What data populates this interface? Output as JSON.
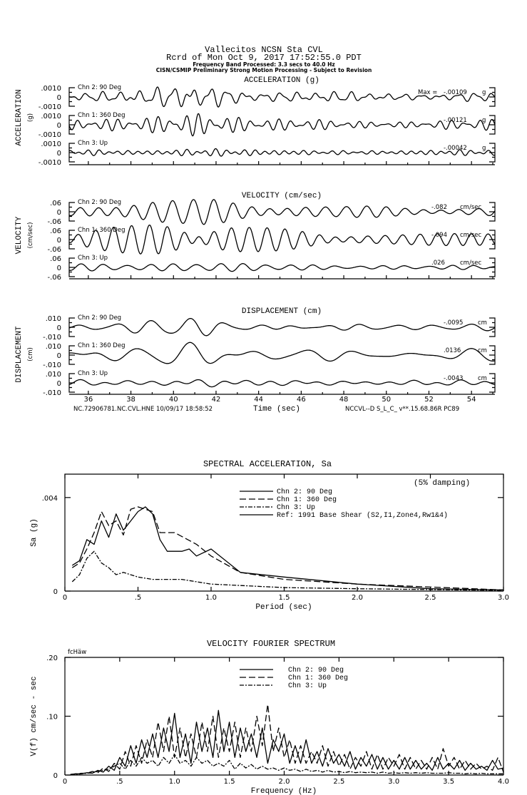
{
  "header": {
    "station": "Vallecitos    NCSN Sta CVL",
    "record": "Rcrd of Mon Oct  9, 2017 17:52:55.0 PDT",
    "band": "Frequency Band Processed: 3.3 secs to 40.0 Hz",
    "note": "CISN/CSMIP Preliminary Strong Motion Processing - Subject to Revision"
  },
  "time_panels": [
    {
      "title": "ACCELERATION (g)",
      "ylabel": "ACCELERATION",
      "yunit": "(g)",
      "tick_top": ".0010",
      "tick_mid": "0",
      "tick_bottom": "-.0010",
      "scale": 0.001,
      "max_prefix": "Max =",
      "channels": [
        {
          "label": "Chn 2: 90 Deg",
          "max": "-.00109",
          "unit": "g"
        },
        {
          "label": "Chn 1: 360 Deg",
          "max": "-.00121",
          "unit": "g"
        },
        {
          "label": "Chn 3: Up",
          "max": "-.00042",
          "unit": "g"
        }
      ]
    },
    {
      "title": "VELOCITY (cm/sec)",
      "ylabel": "VELOCITY",
      "yunit": "(cm/sec)",
      "tick_top": ".06",
      "tick_mid": "0",
      "tick_bottom": "-.06",
      "scale": 0.06,
      "channels": [
        {
          "label": "Chn 2: 90 Deg",
          "max": "-.082",
          "unit": "cm/sec"
        },
        {
          "label": "Chn 1: 360 Deg",
          "max": "-.094",
          "unit": "cm/sec"
        },
        {
          "label": "Chn 3: Up",
          "max": ".026",
          "unit": "cm/sec"
        }
      ]
    },
    {
      "title": "DISPLACEMENT (cm)",
      "ylabel": "DISPLACEMENT",
      "yunit": "(cm)",
      "tick_top": ".010",
      "tick_mid": "0",
      "tick_bottom": "-.010",
      "scale": 0.01,
      "channels": [
        {
          "label": "Chn 2: 90 Deg",
          "max": "-.0095",
          "unit": "cm"
        },
        {
          "label": "Chn 1: 360 Deg",
          "max": ".0136",
          "unit": "cm"
        },
        {
          "label": "Chn 3: Up",
          "max": "-.0043",
          "unit": "cm"
        }
      ]
    }
  ],
  "time_axis": {
    "label": "Time (sec)",
    "xlim": [
      35.1,
      55.1
    ],
    "ticks": [
      "36",
      "38",
      "40",
      "42",
      "44",
      "46",
      "48",
      "50",
      "52",
      "54"
    ]
  },
  "footer": {
    "left": "NC.72906781.NC.CVL.HNE 10/09/17 18:58:52",
    "right": "NCCVL--D  S_L_C_  v**.15.68.86R PC89"
  },
  "chart_data": [
    {
      "type": "line",
      "title": "SPECTRAL ACCELERATION, Sa",
      "annotation": "(5% damping)",
      "xlabel": "Period (sec)",
      "ylabel": "Sa (g)",
      "xlim": [
        0,
        3.0
      ],
      "ylim": [
        0,
        0.005
      ],
      "xticks": [
        "0",
        ".5",
        "1.0",
        "1.5",
        "2.0",
        "2.5",
        "3.0"
      ],
      "yticks": [
        ".004",
        "0"
      ],
      "legend_position": "top-center",
      "legend": [
        "Chn 2: 90 Deg",
        "Chn 1: 360 Deg",
        "Chn 3: Up",
        "Ref: 1991 Base Shear (S2,I1,Zone4,Rw1&4)"
      ],
      "series": [
        {
          "name": "Chn 2: 90 Deg",
          "style": "solid",
          "x": [
            0.05,
            0.1,
            0.15,
            0.2,
            0.25,
            0.3,
            0.35,
            0.4,
            0.45,
            0.5,
            0.55,
            0.6,
            0.65,
            0.7,
            0.8,
            0.85,
            0.9,
            1.0,
            1.1,
            1.2,
            1.5,
            2.0,
            2.5,
            3.0
          ],
          "y": [
            0.0011,
            0.0013,
            0.0022,
            0.002,
            0.003,
            0.0023,
            0.0033,
            0.0026,
            0.003,
            0.0034,
            0.0036,
            0.0033,
            0.0022,
            0.0017,
            0.0017,
            0.0018,
            0.0015,
            0.0018,
            0.0013,
            0.0008,
            0.0006,
            0.0003,
            0.0001,
            5e-05
          ]
        },
        {
          "name": "Chn 1: 360 Deg",
          "style": "dashed",
          "x": [
            0.05,
            0.1,
            0.15,
            0.2,
            0.25,
            0.3,
            0.35,
            0.4,
            0.45,
            0.5,
            0.55,
            0.6,
            0.65,
            0.75,
            0.9,
            1.0,
            1.2,
            1.5,
            2.0,
            3.0
          ],
          "y": [
            0.001,
            0.0012,
            0.0018,
            0.0025,
            0.0034,
            0.0028,
            0.003,
            0.0024,
            0.0035,
            0.0036,
            0.0035,
            0.0034,
            0.0025,
            0.0025,
            0.002,
            0.0015,
            0.0008,
            0.0005,
            0.0003,
            5e-05
          ]
        },
        {
          "name": "Chn 3: Up",
          "style": "dashdot",
          "x": [
            0.05,
            0.1,
            0.15,
            0.2,
            0.25,
            0.3,
            0.35,
            0.4,
            0.5,
            0.6,
            0.8,
            0.9,
            1.0,
            1.5,
            2.0,
            3.0
          ],
          "y": [
            0.0004,
            0.0007,
            0.0014,
            0.0017,
            0.0012,
            0.001,
            0.0007,
            0.0008,
            0.0006,
            0.0005,
            0.0005,
            0.0004,
            0.0003,
            0.00015,
            0.0001,
            3e-05
          ]
        }
      ]
    },
    {
      "type": "line",
      "title": "VELOCITY FOURIER SPECTRUM",
      "annotation": "fcHäw",
      "xlabel": "Frequency (Hz)",
      "ylabel": "V(f)   cm/sec - sec",
      "xlim": [
        0,
        4.0
      ],
      "ylim": [
        0,
        0.2
      ],
      "xticks": [
        "0",
        ".5",
        "1.0",
        "1.5",
        "2.0",
        "2.5",
        "3.0",
        "3.5",
        "4.0"
      ],
      "yticks": [
        ".20",
        ".10",
        "0"
      ],
      "legend_position": "top-center",
      "legend": [
        "Chn 2: 90 Deg",
        "Chn 1: 360 Deg",
        "Chn 3: Up"
      ],
      "x_start": 0.05,
      "x_step": 0.05,
      "series": [
        {
          "name": "Chn 2: 90 Deg",
          "style": "solid",
          "y": [
            0.001,
            0.002,
            0.002,
            0.004,
            0.003,
            0.008,
            0.005,
            0.015,
            0.008,
            0.03,
            0.015,
            0.05,
            0.02,
            0.06,
            0.03,
            0.07,
            0.03,
            0.08,
            0.04,
            0.105,
            0.03,
            0.07,
            0.02,
            0.09,
            0.04,
            0.08,
            0.03,
            0.11,
            0.04,
            0.09,
            0.03,
            0.08,
            0.04,
            0.07,
            0.03,
            0.08,
            0.02,
            0.06,
            0.04,
            0.07,
            0.02,
            0.05,
            0.02,
            0.06,
            0.02,
            0.04,
            0.015,
            0.045,
            0.02,
            0.035,
            0.015,
            0.04,
            0.01,
            0.03,
            0.015,
            0.035,
            0.01,
            0.03,
            0.01,
            0.025,
            0.01,
            0.03,
            0.01,
            0.025,
            0.01,
            0.02,
            0.008,
            0.03,
            0.01,
            0.02,
            0.01,
            0.025,
            0.008,
            0.02,
            0.01,
            0.015,
            0.008,
            0.025,
            0.01,
            0.012
          ]
        },
        {
          "name": "Chn 1: 360 Deg",
          "style": "dashed",
          "y": [
            0.001,
            0.002,
            0.003,
            0.003,
            0.006,
            0.004,
            0.012,
            0.006,
            0.02,
            0.01,
            0.04,
            0.015,
            0.05,
            0.02,
            0.06,
            0.03,
            0.09,
            0.04,
            0.1,
            0.03,
            0.08,
            0.03,
            0.07,
            0.03,
            0.09,
            0.04,
            0.1,
            0.03,
            0.08,
            0.04,
            0.09,
            0.03,
            0.08,
            0.04,
            0.1,
            0.05,
            0.12,
            0.04,
            0.08,
            0.03,
            0.06,
            0.02,
            0.05,
            0.02,
            0.04,
            0.02,
            0.05,
            0.015,
            0.04,
            0.015,
            0.035,
            0.01,
            0.03,
            0.015,
            0.04,
            0.01,
            0.035,
            0.01,
            0.03,
            0.015,
            0.035,
            0.01,
            0.03,
            0.01,
            0.025,
            0.01,
            0.03,
            0.01,
            0.045,
            0.015,
            0.03,
            0.01,
            0.025,
            0.01,
            0.02,
            0.01,
            0.015,
            0.008,
            0.03,
            0.005
          ]
        },
        {
          "name": "Chn 3: Up",
          "style": "dashdot",
          "y": [
            0.001,
            0.001,
            0.002,
            0.003,
            0.004,
            0.006,
            0.008,
            0.01,
            0.015,
            0.02,
            0.01,
            0.025,
            0.015,
            0.03,
            0.02,
            0.025,
            0.015,
            0.03,
            0.02,
            0.035,
            0.02,
            0.025,
            0.015,
            0.03,
            0.02,
            0.025,
            0.015,
            0.02,
            0.015,
            0.025,
            0.01,
            0.02,
            0.012,
            0.018,
            0.01,
            0.015,
            0.01,
            0.012,
            0.008,
            0.012,
            0.008,
            0.01,
            0.006,
            0.01,
            0.006,
            0.008,
            0.005,
            0.008,
            0.005,
            0.006,
            0.004,
            0.006,
            0.004,
            0.005,
            0.004,
            0.005,
            0.003,
            0.005,
            0.003,
            0.004,
            0.003,
            0.004,
            0.003,
            0.004,
            0.003,
            0.004,
            0.003,
            0.003,
            0.003,
            0.004,
            0.003,
            0.003,
            0.002,
            0.003,
            0.002,
            0.003,
            0.002,
            0.002,
            0.002,
            0.002
          ]
        }
      ]
    }
  ]
}
